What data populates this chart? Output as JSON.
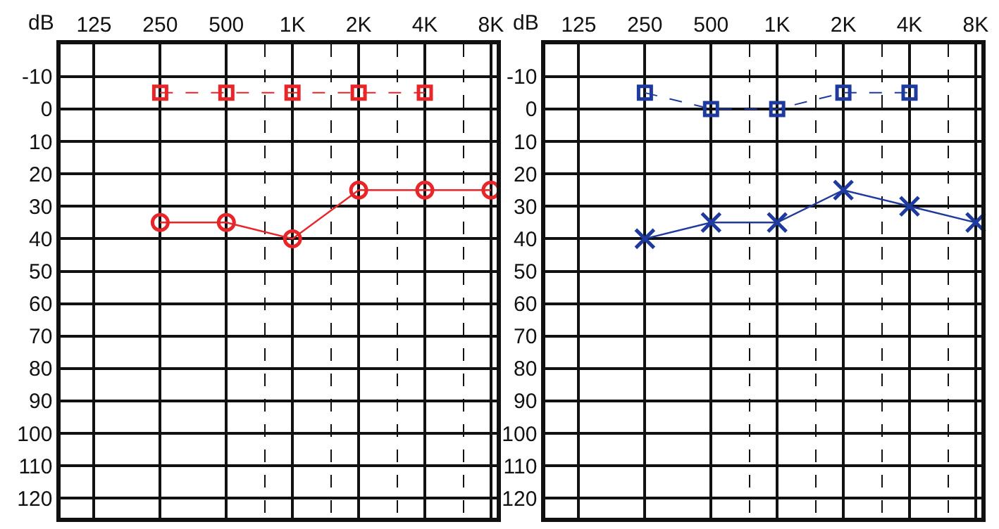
{
  "chart_data": [
    {
      "type": "line",
      "ylabel": "dB",
      "log": "x",
      "xlim": [
        88,
        8500
      ],
      "xticks": [
        125,
        250,
        500,
        {
          "value": 750,
          "label": null
        },
        {
          "value": 1000,
          "label": "1K"
        },
        {
          "value": 1500,
          "label": null
        },
        {
          "value": 2000,
          "label": "2K"
        },
        {
          "value": 3000,
          "label": null
        },
        {
          "value": 4000,
          "label": "4K"
        },
        {
          "value": 6000,
          "label": null
        },
        {
          "value": 8000,
          "label": "8K"
        }
      ],
      "ylim": [
        126,
        -20
      ],
      "yticks": [
        -10,
        0,
        10,
        20,
        30,
        40,
        50,
        60,
        70,
        80,
        90,
        100,
        110,
        120
      ],
      "grid": true,
      "series": [
        {
          "color": "#e8262a",
          "marker": "circle",
          "line_style": "solid",
          "x": [
            250,
            500,
            1000,
            2000,
            4000,
            8000
          ],
          "values": [
            35,
            35,
            40,
            25,
            25,
            25
          ]
        },
        {
          "color": "#e8262a",
          "marker": "square",
          "line_style": "dashed",
          "x": [
            250,
            500,
            1000,
            2000,
            4000
          ],
          "values": [
            -5,
            -5,
            -5,
            -5,
            -5
          ]
        }
      ]
    },
    {
      "type": "line",
      "ylabel": "dB",
      "log": "x",
      "xlim": [
        88,
        8500
      ],
      "xticks": [
        125,
        250,
        500,
        {
          "value": 750,
          "label": null
        },
        {
          "value": 1000,
          "label": "1K"
        },
        {
          "value": 1500,
          "label": null
        },
        {
          "value": 2000,
          "label": "2K"
        },
        {
          "value": 3000,
          "label": null
        },
        {
          "value": 4000,
          "label": "4K"
        },
        {
          "value": 6000,
          "label": null
        },
        {
          "value": 8000,
          "label": "8K"
        }
      ],
      "ylim": [
        126,
        -20
      ],
      "yticks": [
        -10,
        0,
        10,
        20,
        30,
        40,
        50,
        60,
        70,
        80,
        90,
        100,
        110,
        120
      ],
      "grid": true,
      "series": [
        {
          "color": "#1f3a9e",
          "marker": "cross",
          "line_style": "solid",
          "x": [
            250,
            500,
            1000,
            2000,
            4000,
            8000
          ],
          "values": [
            40,
            35,
            35,
            25,
            30,
            35
          ]
        },
        {
          "color": "#1f3a9e",
          "marker": "square",
          "line_style": "dashed",
          "x": [
            250,
            500,
            1000,
            2000,
            4000
          ],
          "values": [
            -5,
            0,
            0,
            -5,
            -5
          ]
        }
      ]
    }
  ]
}
